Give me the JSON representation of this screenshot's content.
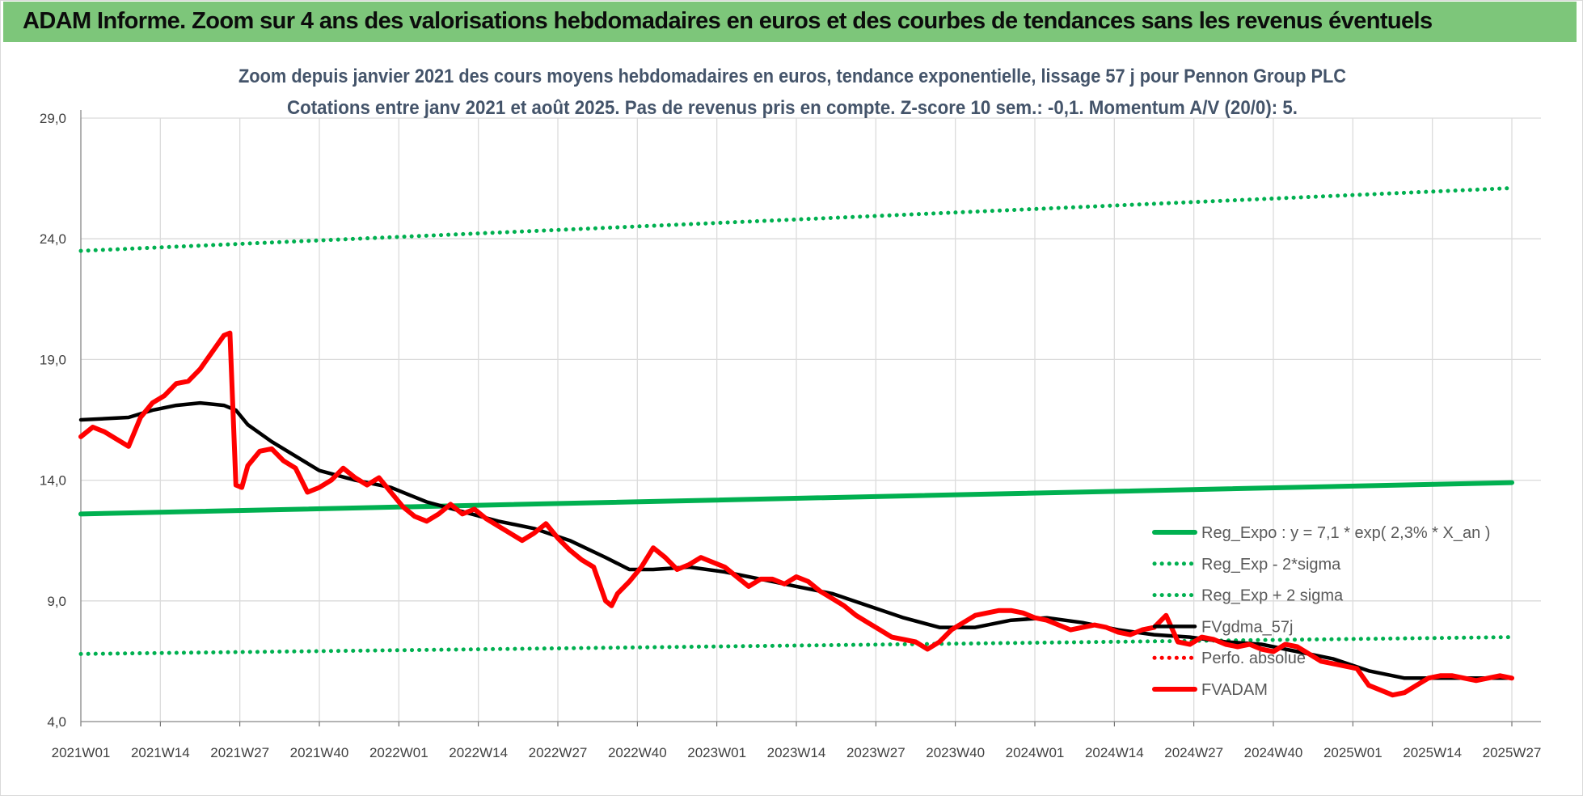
{
  "banner": {
    "title": "ADAM Informe. Zoom sur 4 ans des valorisations hebdomadaires en euros et des courbes de tendances sans les revenus éventuels"
  },
  "chart_data": {
    "type": "line",
    "title": "Zoom depuis janvier 2021 des cours moyens hebdomadaires en euros, tendance exponentielle, lissage 57 j pour Pennon Group PLC",
    "subtitle": "Cotations entre janv 2021 et août 2025.  Pas de revenus pris en compte. Z-score 10 sem.: -0,1. Momentum A/V (20/0): 5.",
    "xlabel": "",
    "ylabel": "",
    "ylim": [
      4,
      29
    ],
    "yticks": [
      "4,0",
      "9,0",
      "14,0",
      "19,0",
      "24,0",
      "29,0"
    ],
    "x_tick_labels": [
      "2021W01",
      "2021W14",
      "2021W27",
      "2021W40",
      "2022W01",
      "2022W14",
      "2022W27",
      "2022W40",
      "2023W01",
      "2023W14",
      "2023W27",
      "2023W40",
      "2024W01",
      "2024W14",
      "2024W27",
      "2024W40",
      "2025W01",
      "2025W14",
      "2025W27"
    ],
    "x_range_weeks": [
      0,
      240
    ],
    "grid": "vertical and horizontal",
    "legend_position": "bottom-right",
    "series": [
      {
        "name": "Reg_Expo : y = 7,1 * exp( 2,3% *  X_an )",
        "style": "solid",
        "color": "#00b050",
        "x": [
          0,
          240
        ],
        "y": [
          12.6,
          13.9
        ]
      },
      {
        "name": "Reg_Exp - 2*sigma",
        "style": "dotted",
        "color": "#00b050",
        "x": [
          0,
          240
        ],
        "y": [
          6.8,
          7.5
        ]
      },
      {
        "name": "Reg_Exp + 2 sigma",
        "style": "dotted",
        "color": "#00b050",
        "x": [
          0,
          240
        ],
        "y": [
          23.5,
          26.1
        ]
      },
      {
        "name": "FVgdma_57j",
        "style": "solid",
        "color": "#000000",
        "x": [
          0,
          8,
          12,
          16,
          20,
          24,
          26,
          28,
          32,
          36,
          40,
          46,
          52,
          58,
          64,
          70,
          76,
          82,
          88,
          92,
          96,
          102,
          108,
          114,
          120,
          126,
          132,
          138,
          144,
          150,
          156,
          162,
          168,
          174,
          180,
          186,
          192,
          198,
          204,
          210,
          216,
          222,
          228,
          234,
          240
        ],
        "y": [
          16.5,
          16.6,
          16.9,
          17.1,
          17.2,
          17.1,
          16.9,
          16.3,
          15.6,
          15.0,
          14.4,
          14.0,
          13.7,
          13.1,
          12.7,
          12.3,
          12.0,
          11.5,
          10.8,
          10.3,
          10.3,
          10.4,
          10.2,
          9.9,
          9.6,
          9.3,
          8.8,
          8.3,
          7.9,
          7.9,
          8.2,
          8.3,
          8.1,
          7.8,
          7.6,
          7.5,
          7.3,
          7.2,
          6.9,
          6.6,
          6.1,
          5.8,
          5.8,
          5.8,
          5.8
        ]
      },
      {
        "name": "Perfo. absolue",
        "style": "dotted",
        "color": "#ff0000",
        "x": [],
        "y": []
      },
      {
        "name": "FVADAM",
        "style": "solid",
        "color": "#ff0000",
        "x": [
          0,
          2,
          4,
          6,
          8,
          10,
          12,
          14,
          16,
          18,
          20,
          22,
          24,
          25,
          26,
          27,
          28,
          30,
          32,
          34,
          36,
          38,
          40,
          42,
          44,
          46,
          48,
          50,
          52,
          54,
          56,
          58,
          60,
          62,
          64,
          66,
          68,
          70,
          72,
          74,
          76,
          78,
          80,
          82,
          84,
          86,
          88,
          89,
          90,
          92,
          94,
          96,
          98,
          100,
          102,
          104,
          106,
          108,
          110,
          112,
          114,
          116,
          118,
          120,
          122,
          124,
          126,
          128,
          130,
          132,
          134,
          136,
          138,
          140,
          142,
          144,
          146,
          148,
          150,
          152,
          154,
          156,
          158,
          160,
          162,
          164,
          166,
          168,
          170,
          172,
          174,
          176,
          178,
          180,
          182,
          184,
          186,
          188,
          190,
          192,
          194,
          196,
          198,
          200,
          202,
          204,
          206,
          208,
          210,
          212,
          214,
          216,
          218,
          220,
          222,
          224,
          226,
          228,
          230,
          232,
          234,
          236,
          238,
          240
        ],
        "y": [
          15.8,
          16.2,
          16.0,
          15.7,
          15.4,
          16.6,
          17.2,
          17.5,
          18.0,
          18.1,
          18.6,
          19.3,
          20.0,
          20.1,
          13.8,
          13.7,
          14.6,
          15.2,
          15.3,
          14.8,
          14.5,
          13.5,
          13.7,
          14.0,
          14.5,
          14.1,
          13.8,
          14.1,
          13.5,
          12.9,
          12.5,
          12.3,
          12.6,
          13.0,
          12.6,
          12.8,
          12.4,
          12.1,
          11.8,
          11.5,
          11.8,
          12.2,
          11.6,
          11.1,
          10.7,
          10.4,
          9.0,
          8.8,
          9.3,
          9.8,
          10.4,
          11.2,
          10.8,
          10.3,
          10.5,
          10.8,
          10.6,
          10.4,
          10.0,
          9.6,
          9.9,
          9.9,
          9.7,
          10.0,
          9.8,
          9.4,
          9.1,
          8.8,
          8.4,
          8.1,
          7.8,
          7.5,
          7.4,
          7.3,
          7.0,
          7.3,
          7.8,
          8.1,
          8.4,
          8.5,
          8.6,
          8.6,
          8.5,
          8.3,
          8.2,
          8.0,
          7.8,
          7.9,
          8.0,
          7.9,
          7.7,
          7.6,
          7.8,
          7.9,
          8.4,
          7.3,
          7.2,
          7.5,
          7.4,
          7.2,
          7.1,
          7.2,
          7.0,
          6.9,
          7.2,
          7.1,
          6.8,
          6.5,
          6.4,
          6.3,
          6.2,
          5.5,
          5.3,
          5.1,
          5.2,
          5.5,
          5.8,
          5.9,
          5.9,
          5.8,
          5.7,
          5.8,
          5.9,
          5.8
        ]
      }
    ]
  }
}
